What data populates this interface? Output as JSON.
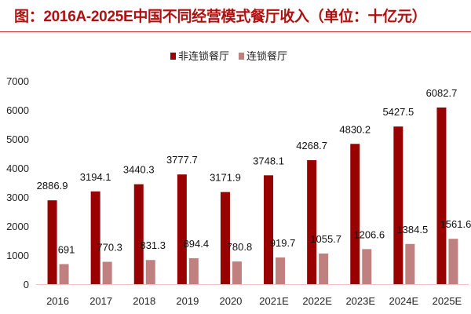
{
  "chart_data": {
    "type": "bar",
    "title": "图：2016A-2025E中国不同经营模式餐厅收入（单位：十亿元）",
    "categories": [
      "2016",
      "2017",
      "2018",
      "2019",
      "2020",
      "2021E",
      "2022E",
      "2023E",
      "2024E",
      "2025E"
    ],
    "series": [
      {
        "name": "非连锁餐厅",
        "color": "#990000",
        "values": [
          2886.9,
          3194.1,
          3440.3,
          3777.7,
          3171.9,
          3748.1,
          4268.7,
          4830.2,
          5427.5,
          6082.7
        ]
      },
      {
        "name": "连锁餐厅",
        "color": "#c08080",
        "values": [
          691,
          770.3,
          831.3,
          894.4,
          780.8,
          919.7,
          1055.7,
          1206.6,
          1384.5,
          1561.6
        ]
      }
    ],
    "yticks": [
      0,
      1000,
      2000,
      3000,
      4000,
      5000,
      6000,
      7000
    ],
    "ylim": [
      0,
      7000
    ],
    "grid": false,
    "legend": "top-center",
    "xlabel": "",
    "ylabel": ""
  }
}
